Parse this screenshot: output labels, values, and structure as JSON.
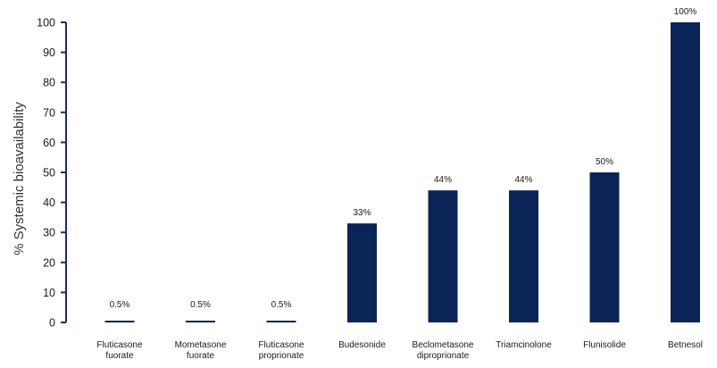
{
  "chart_data": {
    "type": "bar",
    "ylabel": "% Systemic bioavailability",
    "ylim": [
      0,
      100
    ],
    "yticks": [
      0,
      10,
      20,
      30,
      40,
      50,
      60,
      70,
      80,
      90,
      100
    ],
    "grid": false,
    "bar_color": "#0b2457",
    "axis_color": "#1f2f5a",
    "categories": [
      [
        "Fluticasone",
        "fuorate"
      ],
      [
        "Mometasone",
        "fuorate"
      ],
      [
        "Fluticasone",
        "proprionate"
      ],
      [
        "Budesonide"
      ],
      [
        "Beclometasone",
        "diproprionate"
      ],
      [
        "Triamcinolone"
      ],
      [
        "Flunisolide"
      ],
      [
        "Betnesol"
      ]
    ],
    "values": [
      0.5,
      0.5,
      0.5,
      33,
      44,
      44,
      50,
      100
    ],
    "data_labels": [
      "0.5%",
      "0.5%",
      "0.5%",
      "33%",
      "44%",
      "44%",
      "50%",
      "100%"
    ]
  }
}
